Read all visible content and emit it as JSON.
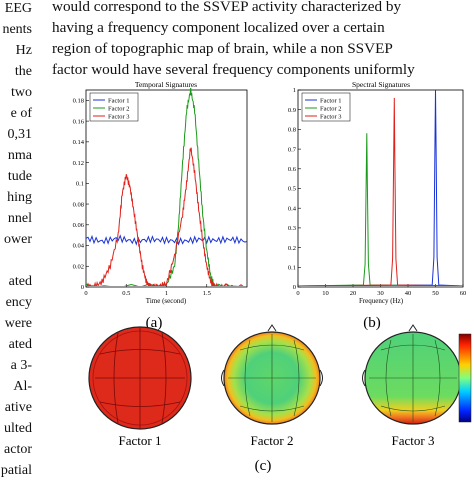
{
  "left_column_fragments": [
    "EEG",
    "nents",
    "Hz",
    "the",
    "two",
    "e of",
    "0,31",
    "nma",
    "tude",
    "hing",
    "nnel",
    "ower",
    "ated",
    "ency",
    "were",
    "ated",
    "a 3-",
    "Al-",
    "ative",
    "ulted",
    "actor",
    "patial"
  ],
  "body_text": [
    "would correspond to the SSVEP activity characterized by",
    "having a frequency component localized over a certain",
    "region of topographic map of brain, while a non SSVEP",
    "factor would have several frequency components uniformly"
  ],
  "figure": {
    "panel_a_label": "(a)",
    "panel_b_label": "(b)",
    "panel_c_label": "(c)",
    "topomap_labels": [
      "Factor 1",
      "Factor 2",
      "Factor 3"
    ],
    "colors": {
      "factor1": "#1a33d6",
      "factor2": "#1a9a1a",
      "factor3": "#e0201a"
    }
  },
  "chart_data": [
    {
      "type": "line",
      "title": "Temporal Signatures",
      "xlabel": "Time (second)",
      "ylabel": "",
      "xlim": [
        0,
        2
      ],
      "ylim": [
        0,
        0.19
      ],
      "xticks": [
        "0",
        "0.5",
        "1",
        "1.5"
      ],
      "yticks": [
        "0",
        "0.02",
        "0.04",
        "0.06",
        "0.08",
        "0.1",
        "0.12",
        "0.14",
        "0.16",
        "0.18"
      ],
      "legend": "top-left",
      "series": [
        {
          "name": "Factor 1",
          "color": "#1a33d6",
          "x": [
            0,
            0.2,
            0.4,
            0.6,
            0.8,
            1.0,
            1.2,
            1.4,
            1.6,
            1.8,
            2.0
          ],
          "y": [
            0.047,
            0.044,
            0.047,
            0.044,
            0.046,
            0.045,
            0.044,
            0.046,
            0.045,
            0.046,
            0.044
          ]
        },
        {
          "name": "Factor 2",
          "color": "#1a9a1a",
          "x": [
            0,
            0.9,
            1.0,
            1.1,
            1.15,
            1.2,
            1.25,
            1.3,
            1.35,
            1.4,
            1.45,
            1.5,
            1.55,
            1.6,
            2.0
          ],
          "y": [
            0,
            0,
            0.002,
            0.02,
            0.06,
            0.12,
            0.17,
            0.19,
            0.17,
            0.12,
            0.07,
            0.035,
            0.01,
            0,
            0
          ]
        },
        {
          "name": "Factor 3",
          "color": "#e0201a",
          "x": [
            0,
            0.1,
            0.2,
            0.3,
            0.4,
            0.45,
            0.5,
            0.55,
            0.6,
            0.65,
            0.7,
            0.75,
            0.8,
            0.85,
            0.9,
            1.0,
            1.1,
            1.2,
            1.25,
            1.3,
            1.35,
            1.4,
            1.45,
            1.5,
            1.55,
            1.6,
            1.7,
            2.0
          ],
          "y": [
            0,
            0,
            0.005,
            0.02,
            0.05,
            0.09,
            0.108,
            0.095,
            0.07,
            0.045,
            0.02,
            0.005,
            0,
            0,
            0,
            0.003,
            0.03,
            0.07,
            0.1,
            0.135,
            0.11,
            0.075,
            0.045,
            0.02,
            0.005,
            0,
            0,
            0
          ]
        }
      ]
    },
    {
      "type": "line",
      "title": "Spectral Signatures",
      "xlabel": "Frequency (Hz)",
      "ylabel": "",
      "xlim": [
        0,
        60
      ],
      "ylim": [
        0,
        1
      ],
      "xticks": [
        "0",
        "10",
        "20",
        "30",
        "40",
        "50",
        "60"
      ],
      "yticks": [
        "0",
        "0.1",
        "0.2",
        "0.3",
        "0.4",
        "0.5",
        "0.6",
        "0.7",
        "0.8",
        "0.9",
        "1"
      ],
      "legend": "top-left",
      "series": [
        {
          "name": "Factor 1",
          "color": "#1a33d6",
          "peak_x": 50,
          "peak_y": 1.0
        },
        {
          "name": "Factor 2",
          "color": "#1a9a1a",
          "peak_x": 25,
          "peak_y": 0.78
        },
        {
          "name": "Factor 3",
          "color": "#e0201a",
          "peak_x": 35,
          "peak_y": 0.96
        }
      ]
    }
  ]
}
